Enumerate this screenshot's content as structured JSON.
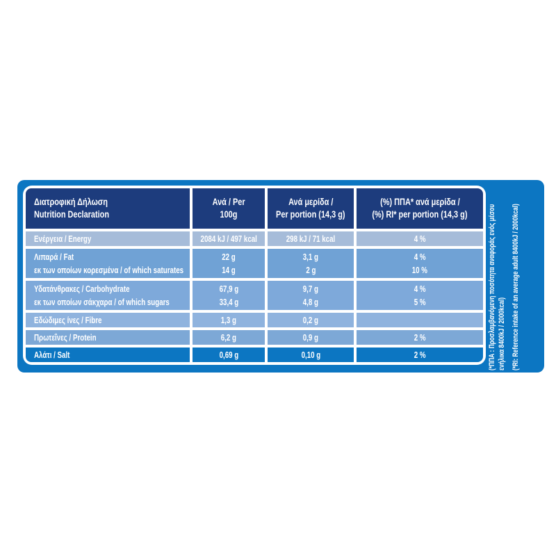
{
  "colors": {
    "page_bg": "#ffffff",
    "panel_blue": "#0c76c2",
    "header_navy": "#1d3c7d",
    "row_energy": "#a6bcd9",
    "row_fat": "#70a2d5",
    "row_carb": "#7ea9da",
    "row_fibre": "#8fb3de",
    "row_protein": "#7da8d6",
    "row_salt": "#0c76c2",
    "text_white": "#ffffff"
  },
  "table": {
    "header": {
      "name_el": "Διατροφική Δήλωση",
      "name_en": "Nutrition Declaration",
      "per100_line1": "Ανά / Per",
      "per100_line2": "100g",
      "portion_line1": "Ανά μερίδα /",
      "portion_line2": "Per portion (14,3 g)",
      "ri_line1": "(%) ΠΠΑ* ανά μερίδα /",
      "ri_line2": "(%) RI* per portion (14,3 g)"
    },
    "rows": [
      {
        "label1": "Ενέργεια / Energy",
        "per100_1": "2084 kJ / 497 kcal",
        "portion1": "298 kJ / 71 kcal",
        "ri1": "4 %"
      },
      {
        "label1": "Λιπαρά / Fat",
        "label2": "εκ των οποίων κορεσμένα / of which saturates",
        "per100_1": "22 g",
        "per100_2": "14 g",
        "portion1": "3,1 g",
        "portion2": "2 g",
        "ri1": "4 %",
        "ri2": "10 %"
      },
      {
        "label1": "Υδατάνθρακες / Carbohydrate",
        "label2": "εκ των οποίων σάκχαρα / of which sugars",
        "per100_1": "67,9 g",
        "per100_2": "33,4 g",
        "portion1": "9,7 g",
        "portion2": "4,8 g",
        "ri1": "4 %",
        "ri2": "5 %"
      },
      {
        "label1": "Εδώδιμες ίνες / Fibre",
        "per100_1": "1,3 g",
        "portion1": "0,2 g",
        "ri1": ""
      },
      {
        "label1": "Πρωτεΐνες / Protein",
        "per100_1": "6,2 g",
        "portion1": "0,9 g",
        "ri1": "2 %"
      },
      {
        "label1": "Αλάτι / Salt",
        "per100_1": "0,69 g",
        "portion1": "0,10 g",
        "ri1": "2 %"
      }
    ]
  },
  "footnote": {
    "el_line1": "(*ΠΠΑ : Προσλαμβανόμενη ποσότητα αναφοράς ενός μέσου",
    "el_line2": "ενήλικα 8400kJ / 2000kcal)",
    "en": "(*RI: Reference intake of an average adult 8400kJ / 2000kcal)"
  }
}
